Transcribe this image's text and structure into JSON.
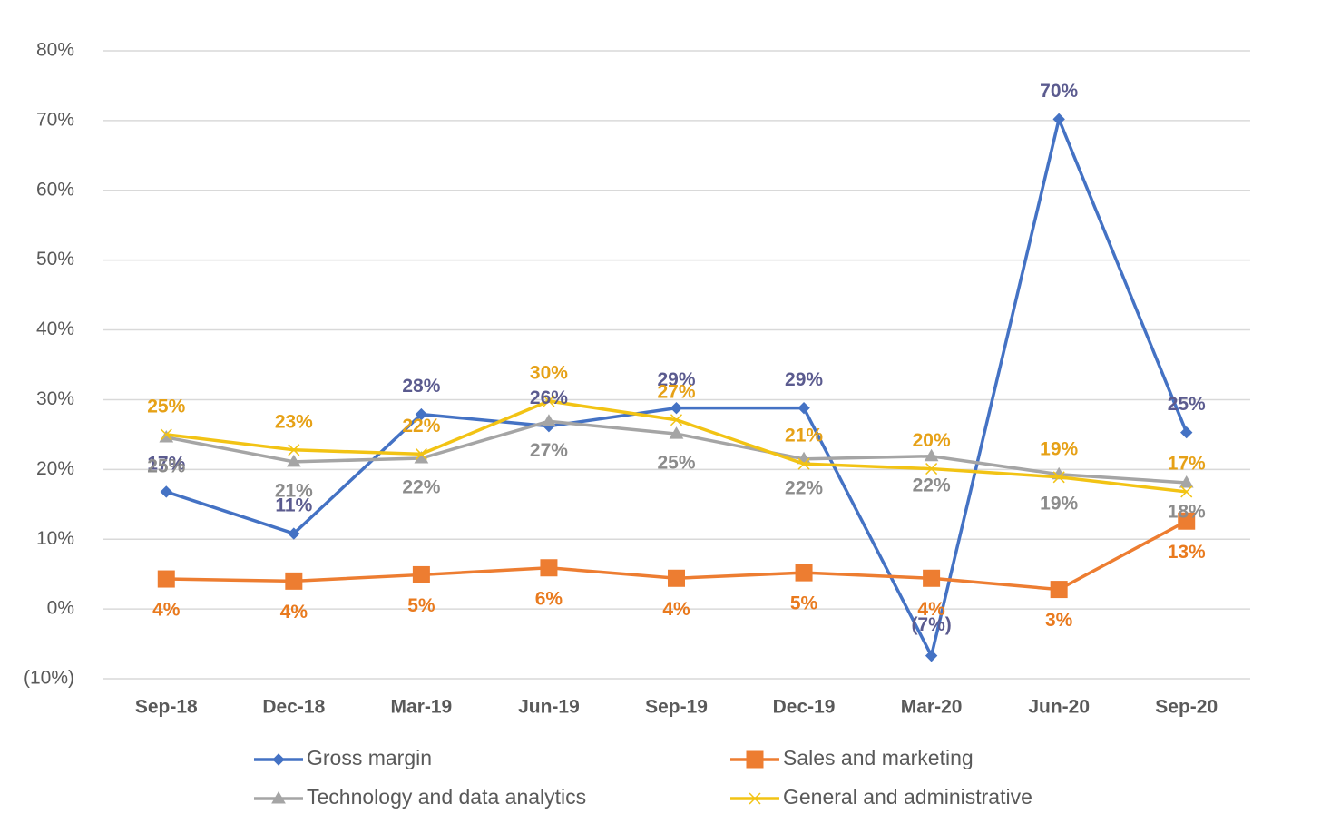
{
  "chart_data": {
    "type": "line",
    "categories": [
      "Sep-18",
      "Dec-18",
      "Mar-19",
      "Jun-19",
      "Sep-19",
      "Dec-19",
      "Mar-20",
      "Jun-20",
      "Sep-20"
    ],
    "series": [
      {
        "name": "Gross margin",
        "color": "#4472c4",
        "marker": "diamond",
        "label_color": "#5b5b8f",
        "values": [
          16.8,
          10.8,
          27.9,
          26.2,
          28.8,
          28.8,
          -6.7,
          70.2,
          25.3
        ],
        "value_labels": [
          "17%",
          "11%",
          "28%",
          "26%",
          "29%",
          "29%",
          "(7%)",
          "70%",
          "25%"
        ]
      },
      {
        "name": "Sales and marketing",
        "color": "#ed7d31",
        "marker": "square",
        "label_color": "#e97a1e",
        "values": [
          4.3,
          4.0,
          4.9,
          5.9,
          4.4,
          5.2,
          4.4,
          2.8,
          12.6
        ],
        "value_labels": [
          "4%",
          "4%",
          "5%",
          "6%",
          "4%",
          "5%",
          "4%",
          "3%",
          "13%"
        ]
      },
      {
        "name": "Technology and data analytics",
        "color": "#a5a5a5",
        "marker": "triangle",
        "label_color": "#8c8c8c",
        "values": [
          24.6,
          21.1,
          21.6,
          26.9,
          25.1,
          21.5,
          21.9,
          19.3,
          18.1
        ],
        "value_labels": [
          "25%",
          "21%",
          "22%",
          "27%",
          "25%",
          "22%",
          "22%",
          "19%",
          "18%"
        ]
      },
      {
        "name": "General and administrative",
        "color": "#f2c314",
        "marker": "x",
        "label_color": "#e6a117",
        "values": [
          25.0,
          22.8,
          22.2,
          29.8,
          27.1,
          20.8,
          20.1,
          18.9,
          16.8
        ],
        "value_labels": [
          "25%",
          "23%",
          "22%",
          "30%",
          "27%",
          "21%",
          "20%",
          "19%",
          "17%"
        ]
      }
    ],
    "ylim": [
      -10,
      80
    ],
    "yticks": [
      {
        "value": -10,
        "label": "(10%)"
      },
      {
        "value": 0,
        "label": "0%"
      },
      {
        "value": 10,
        "label": "10%"
      },
      {
        "value": 20,
        "label": "20%"
      },
      {
        "value": 30,
        "label": "30%"
      },
      {
        "value": 40,
        "label": "40%"
      },
      {
        "value": 50,
        "label": "50%"
      },
      {
        "value": 60,
        "label": "60%"
      },
      {
        "value": 70,
        "label": "70%"
      },
      {
        "value": 80,
        "label": "80%"
      }
    ],
    "grid": true,
    "legend": "bottom"
  }
}
